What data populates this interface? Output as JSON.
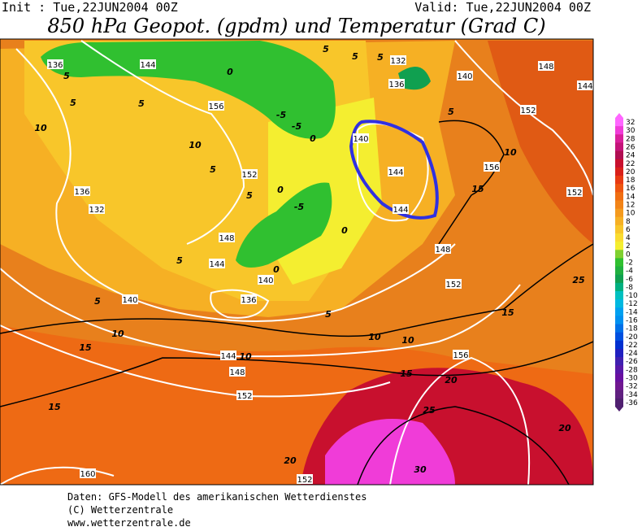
{
  "header": {
    "init": "Init : Tue,22JUN2004 00Z",
    "valid": "Valid: Tue,22JUN2004 00Z",
    "title": "850 hPa Geopot. (gpdm) und Temperatur (Grad C)"
  },
  "legend": {
    "labels": [
      32,
      30,
      28,
      26,
      24,
      22,
      20,
      18,
      16,
      14,
      12,
      10,
      8,
      6,
      4,
      2,
      0,
      -2,
      -4,
      -6,
      -8,
      -10,
      -12,
      -14,
      -16,
      -18,
      -20,
      -22,
      -24,
      -26,
      -28,
      -30,
      -32,
      -34,
      -36
    ],
    "colors": [
      "#ff66ff",
      "#f03cd8",
      "#d9209c",
      "#c4147a",
      "#b00e52",
      "#c8102e",
      "#d9201a",
      "#e83a12",
      "#ee5510",
      "#f06e12",
      "#f28418",
      "#f49a1e",
      "#f6b024",
      "#f8c62a",
      "#fadc30",
      "#f4ee30",
      "#7fd030",
      "#30c030",
      "#20b040",
      "#10a050",
      "#00b080",
      "#00c0c0",
      "#00b8e0",
      "#00a0f0",
      "#0090f0",
      "#0070e8",
      "#0050e0",
      "#0030d0",
      "#2020c0",
      "#4020b0",
      "#5818a8",
      "#6810a0",
      "#701890",
      "#602080",
      "#502070"
    ]
  },
  "geopotential_labels": [
    136,
    144,
    132,
    136,
    140,
    148,
    144,
    156,
    152,
    140,
    144,
    156,
    136,
    132,
    152,
    152,
    144,
    148,
    144,
    148,
    140,
    152,
    140,
    136,
    144,
    148,
    156,
    152,
    160,
    152
  ],
  "temperature_labels": [
    5,
    10,
    5,
    5,
    10,
    5,
    -5,
    -5,
    0,
    5,
    0,
    -5,
    0,
    5,
    0,
    5,
    5,
    10,
    15,
    10,
    10,
    10,
    15,
    15,
    20,
    15,
    25,
    20,
    30,
    20,
    25,
    15,
    10,
    5,
    5,
    5,
    0,
    5
  ],
  "footer": [
    "Daten: GFS-Modell des amerikanischen Wetterdienstes",
    "(C) Wetterzentrale",
    "www.wetterzentrale.de"
  ]
}
